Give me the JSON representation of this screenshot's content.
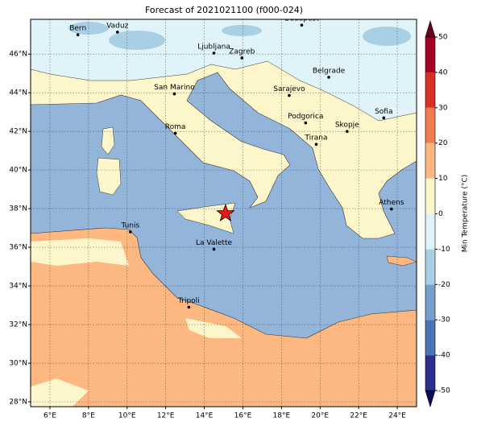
{
  "title": "Forecast of 2021021100 (f000-024)",
  "map": {
    "xlim": [
      5,
      25
    ],
    "ylim": [
      27.75,
      47.8
    ],
    "xticks": [
      {
        "value": 6,
        "label": "6°E"
      },
      {
        "value": 8,
        "label": "8°E"
      },
      {
        "value": 10,
        "label": "10°E"
      },
      {
        "value": 12,
        "label": "12°E"
      },
      {
        "value": 14,
        "label": "14°E"
      },
      {
        "value": 16,
        "label": "16°E"
      },
      {
        "value": 18,
        "label": "18°E"
      },
      {
        "value": 20,
        "label": "20°E"
      },
      {
        "value": 22,
        "label": "22°E"
      },
      {
        "value": 24,
        "label": "24°E"
      }
    ],
    "yticks": [
      {
        "value": 28,
        "label": "28°N"
      },
      {
        "value": 30,
        "label": "30°N"
      },
      {
        "value": 32,
        "label": "32°N"
      },
      {
        "value": 34,
        "label": "34°N"
      },
      {
        "value": 36,
        "label": "36°N"
      },
      {
        "value": 38,
        "label": "38°N"
      },
      {
        "value": 40,
        "label": "40°N"
      },
      {
        "value": 42,
        "label": "42°N"
      },
      {
        "value": 44,
        "label": "44°N"
      },
      {
        "value": 46,
        "label": "46°N"
      }
    ],
    "grid": true,
    "cities": [
      {
        "name": "Bern",
        "lon": 7.45,
        "lat": 47.0
      },
      {
        "name": "Vaduz",
        "lon": 9.5,
        "lat": 47.14
      },
      {
        "name": "Budapest",
        "lon": 19.05,
        "lat": 47.5
      },
      {
        "name": "Ljubljana",
        "lon": 14.5,
        "lat": 46.05
      },
      {
        "name": "Zagreb",
        "lon": 15.95,
        "lat": 45.8
      },
      {
        "name": "Belgrade",
        "lon": 20.45,
        "lat": 44.8
      },
      {
        "name": "San Marino",
        "lon": 12.45,
        "lat": 43.94
      },
      {
        "name": "Sarajevo",
        "lon": 18.4,
        "lat": 43.86
      },
      {
        "name": "Sofia",
        "lon": 23.3,
        "lat": 42.7
      },
      {
        "name": "Podgorica",
        "lon": 19.25,
        "lat": 42.44
      },
      {
        "name": "Skopje",
        "lon": 21.4,
        "lat": 42.0
      },
      {
        "name": "Roma",
        "lon": 12.5,
        "lat": 41.9
      },
      {
        "name": "Tirana",
        "lon": 19.8,
        "lat": 41.33
      },
      {
        "name": "Athens",
        "lon": 23.7,
        "lat": 37.98
      },
      {
        "name": "Tunis",
        "lon": 10.17,
        "lat": 36.8
      },
      {
        "name": "La Valette",
        "lon": 14.5,
        "lat": 35.9
      },
      {
        "name": "Tripoli",
        "lon": 13.2,
        "lat": 32.9
      }
    ],
    "marker": {
      "lon": 15.1,
      "lat": 37.75,
      "color": "#e41a1c"
    }
  },
  "colorbar": {
    "label": "Min Temperature (°C)",
    "ticks": [
      -50,
      -40,
      -30,
      -20,
      -10,
      0,
      10,
      20,
      30,
      40,
      50
    ],
    "colors": [
      "#2b2f8f",
      "#4a74b4",
      "#76a0cc",
      "#a9cfe5",
      "#e0f3f8",
      "#fdf6cb",
      "#fdb882",
      "#f47a4f",
      "#d73027",
      "#a50026"
    ],
    "extend_colors": [
      "#0b0b5a",
      "#6b001f"
    ]
  }
}
